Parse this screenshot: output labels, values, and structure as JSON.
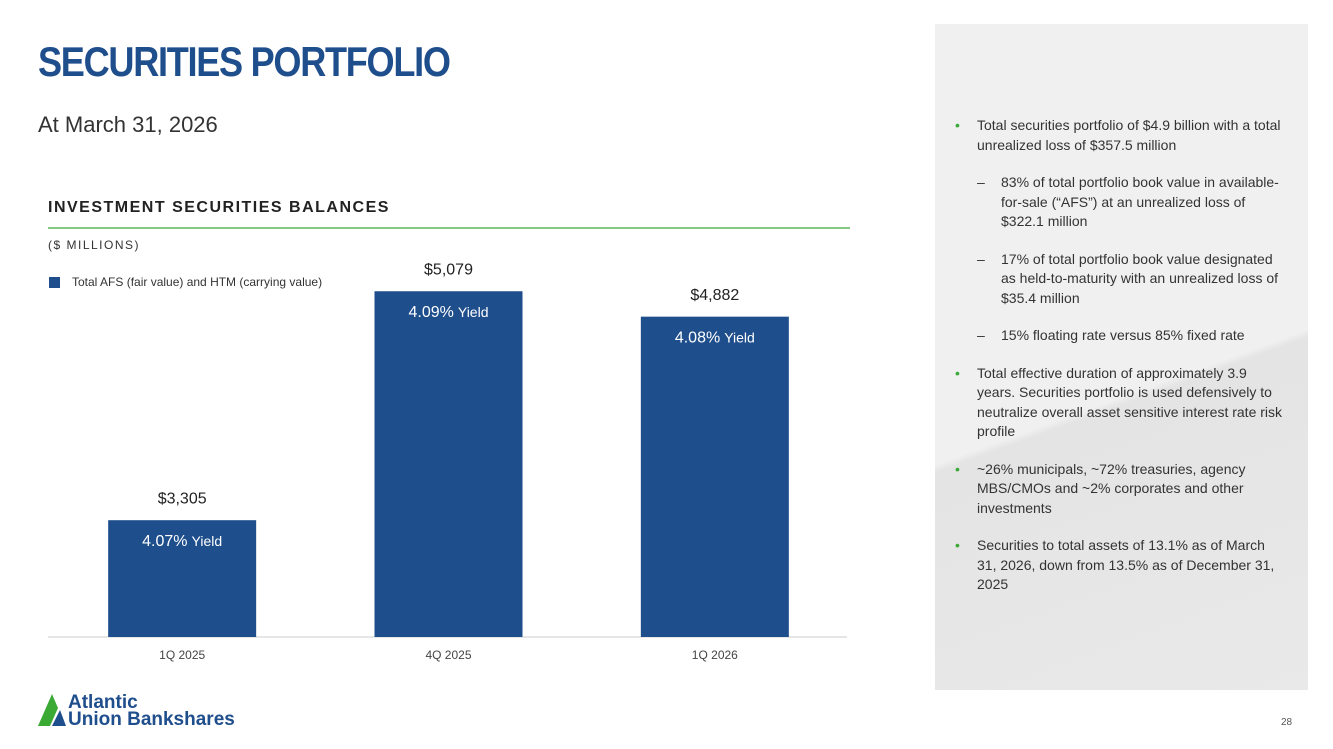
{
  "header": {
    "title": "SECURITIES PORTFOLIO",
    "subtitle": "At March 31, 2026"
  },
  "chart_data": {
    "type": "bar",
    "title": "INVESTMENT SECURITIES BALANCES",
    "subtitle": "($ MILLIONS)",
    "categories": [
      "1Q 2025",
      "4Q 2025",
      "1Q 2026"
    ],
    "series": [
      {
        "name": "Total AFS (fair value) and HTM (carrying value)",
        "color": "#1f4e8c",
        "values": [
          3305,
          5079,
          4882
        ],
        "value_labels": [
          "$3,305",
          "$5,079",
          "$4,882"
        ]
      }
    ],
    "yield_labels": [
      "4.07%",
      "4.09%",
      "4.08%"
    ],
    "yield_word": "Yield",
    "ylim": [
      2400,
      5600
    ]
  },
  "bullets": [
    {
      "text": "Total securities portfolio of $4.9 billion with a total unrealized loss of $357.5 million",
      "subs": [
        "83% of total portfolio book value in available-for-sale (“AFS”) at an unrealized loss of $322.1 million",
        "17% of total portfolio book value designated as held-to-maturity with an unrealized loss of $35.4 million",
        "15% floating rate versus 85% fixed rate"
      ]
    },
    {
      "text": "Total effective duration of approximately 3.9 years. Securities portfolio is used defensively to neutralize overall asset sensitive interest rate risk profile",
      "subs": []
    },
    {
      "text": "~26% municipals, ~72% treasuries, agency MBS/CMOs and ~2% corporates and other investments",
      "subs": []
    },
    {
      "text": "Securities to total assets of 13.1% as of March 31, 2026, down from 13.5% as of December 31, 2025",
      "subs": []
    }
  ],
  "footer": {
    "logo_line1": "Atlantic",
    "logo_line2": "Union Bankshares",
    "page": "28"
  }
}
